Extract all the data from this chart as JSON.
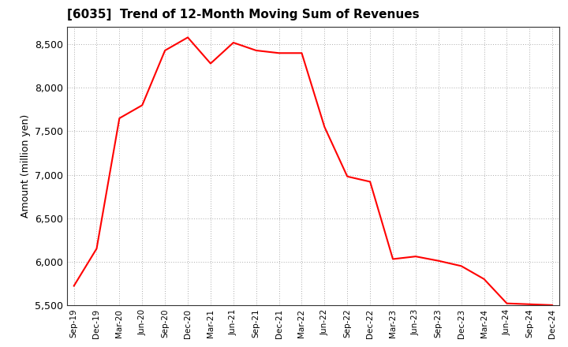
{
  "title": "[6035]  Trend of 12-Month Moving Sum of Revenues",
  "ylabel": "Amount (million yen)",
  "line_color": "#ff0000",
  "background_color": "#ffffff",
  "grid_color": "#aaaaaa",
  "ylim": [
    5500,
    8700
  ],
  "yticks": [
    5500,
    6000,
    6500,
    7000,
    7500,
    8000,
    8500
  ],
  "x_labels": [
    "Sep-19",
    "Dec-19",
    "Mar-20",
    "Jun-20",
    "Sep-20",
    "Dec-20",
    "Mar-21",
    "Jun-21",
    "Sep-21",
    "Dec-21",
    "Mar-22",
    "Jun-22",
    "Sep-22",
    "Dec-22",
    "Mar-23",
    "Jun-23",
    "Sep-23",
    "Dec-23",
    "Mar-24",
    "Jun-24",
    "Sep-24",
    "Dec-24"
  ],
  "values": [
    5720,
    6150,
    7650,
    7800,
    8430,
    8580,
    8280,
    8520,
    8430,
    8400,
    8400,
    7550,
    6980,
    6920,
    6030,
    6060,
    6010,
    5950,
    5800,
    5520,
    5510,
    5500
  ]
}
